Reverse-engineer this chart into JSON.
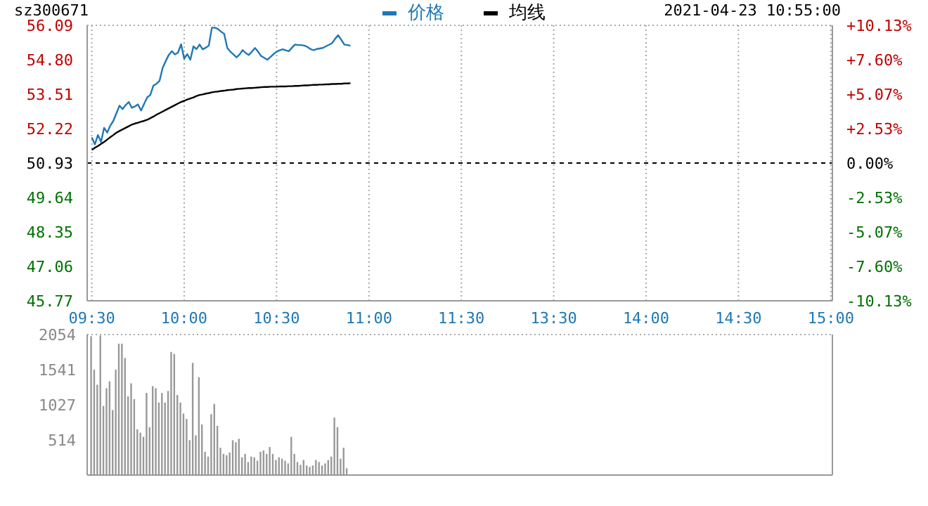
{
  "chart_data": [
    {
      "type": "line",
      "title": "sz300671",
      "subtitle": "2021-04-23 10:55:00",
      "categories": [
        "09:30",
        null,
        null,
        null,
        null,
        null,
        null,
        null,
        null,
        null,
        null,
        null,
        null,
        null,
        null,
        null,
        null,
        null,
        null,
        null,
        null,
        null,
        null,
        null,
        null,
        null,
        null,
        null,
        null,
        null,
        "10:00",
        null,
        null,
        null,
        null,
        null,
        null,
        null,
        null,
        null,
        null,
        null,
        null,
        null,
        null,
        null,
        null,
        null,
        null,
        null,
        null,
        null,
        null,
        null,
        null,
        null,
        null,
        null,
        null,
        null,
        "10:30",
        null,
        null,
        null,
        null,
        null,
        null,
        null,
        null,
        null,
        null,
        null,
        null,
        null,
        null,
        null,
        null,
        null,
        null,
        null,
        null,
        null,
        null,
        null,
        null,
        null,
        null,
        null,
        null,
        null,
        "11:00",
        null,
        null,
        null,
        null,
        null,
        null,
        null,
        null,
        null,
        null,
        null,
        null,
        null,
        null,
        null,
        null,
        null,
        null,
        null,
        null,
        null,
        null,
        null,
        null,
        null,
        null,
        null,
        null,
        null,
        "11:30",
        null,
        null,
        null,
        null,
        null,
        null,
        null,
        null,
        null,
        null,
        null,
        null,
        null,
        null,
        null,
        null,
        null,
        null,
        null,
        null,
        null,
        null,
        null,
        null,
        null,
        null,
        null,
        null,
        null,
        "13:30",
        null,
        null,
        null,
        null,
        null,
        null,
        null,
        null,
        null,
        null,
        null,
        null,
        null,
        null,
        null,
        null,
        null,
        null,
        null,
        null,
        null,
        null,
        null,
        null,
        null,
        null,
        null,
        null,
        null,
        "14:00",
        null,
        null,
        null,
        null,
        null,
        null,
        null,
        null,
        null,
        null,
        null,
        null,
        null,
        null,
        null,
        null,
        null,
        null,
        null,
        null,
        null,
        null,
        null,
        null,
        null,
        null,
        null,
        null,
        null,
        "14:30",
        null,
        null,
        null,
        null,
        null,
        null,
        null,
        null,
        null,
        null,
        null,
        null,
        null,
        null,
        null,
        null,
        null,
        null,
        null,
        null,
        null,
        null,
        null,
        null,
        null,
        null,
        null,
        null,
        null,
        "15:00"
      ],
      "ylim": [
        45.77,
        56.09
      ],
      "yticks": [
        45.77,
        47.06,
        48.35,
        49.64,
        50.93,
        52.22,
        53.51,
        {
          "value": 54.8,
          "label": "54.80"
        },
        56.09
      ],
      "y2lim": [
        -10.13,
        10.13
      ],
      "y2ticks": [
        {
          "value": -10.13,
          "label": "-10.13%"
        },
        {
          "value": -7.6,
          "label": "-7.60%"
        },
        {
          "value": -5.07,
          "label": "-5.07%"
        },
        {
          "value": -2.53,
          "label": "-2.53%"
        },
        {
          "value": 0,
          "label": "0.00%"
        },
        {
          "value": 2.53,
          "label": "+2.53%"
        },
        {
          "value": 5.07,
          "label": "+5.07%"
        },
        {
          "value": 7.6,
          "label": "+7.60%"
        },
        {
          "value": 10.13,
          "label": "+10.13%"
        }
      ],
      "grid": true,
      "legend": "top",
      "line_style": "solid",
      "marker": "none",
      "ref_lines": [
        {
          "axis": "y",
          "value": 50.93,
          "color": "#000000",
          "line_style": "dashed"
        }
      ],
      "series": [
        {
          "name": "价格",
          "color": "#1f78b4",
          "values": [
            51.89,
            51.63,
            51.98,
            51.72,
            52.25,
            52.07,
            52.33,
            52.51,
            52.8,
            53.08,
            52.95,
            53.1,
            53.22,
            53.0,
            53.05,
            53.13,
            52.9,
            53.15,
            53.39,
            53.48,
            53.83,
            53.9,
            54.01,
            54.49,
            54.75,
            54.98,
            55.12,
            55.0,
            55.07,
            55.38,
            54.84,
            55.01,
            54.8,
            55.3,
            55.2,
            55.37,
            55.19,
            55.25,
            55.33,
            56.0,
            56.0,
            55.95,
            55.85,
            55.77,
            55.24,
            55.1,
            55.0,
            54.89,
            55.0,
            55.16,
            55.05,
            54.98,
            55.1,
            55.24,
            55.1,
            54.94,
            54.87,
            54.8,
            54.9,
            55.01,
            55.1,
            55.15,
            55.19,
            55.15,
            55.12,
            55.25,
            55.37,
            55.35,
            55.35,
            55.33,
            55.28,
            55.2,
            55.16,
            55.2,
            55.22,
            55.24,
            55.3,
            55.36,
            55.42,
            55.58,
            55.72,
            55.55,
            55.37,
            55.35,
            55.33,
            null,
            null,
            null,
            null,
            null,
            null,
            null,
            null,
            null,
            null,
            null,
            null,
            null,
            null,
            null,
            null,
            null,
            null,
            null,
            null,
            null,
            null,
            null,
            null,
            null,
            null,
            null,
            null,
            null,
            null,
            null,
            null,
            null,
            null,
            null,
            null,
            null,
            null,
            null,
            null,
            null,
            null,
            null,
            null,
            null,
            null,
            null,
            null,
            null,
            null,
            null,
            null,
            null,
            null,
            null,
            null,
            null,
            null,
            null,
            null,
            null,
            null,
            null,
            null,
            null,
            null,
            null,
            null,
            null,
            null,
            null,
            null,
            null,
            null,
            null,
            null,
            null,
            null,
            null,
            null,
            null,
            null,
            null,
            null,
            null,
            null,
            null,
            null,
            null,
            null,
            null,
            null,
            null,
            null,
            null,
            null,
            null,
            null,
            null,
            null,
            null,
            null,
            null,
            null,
            null,
            null,
            null,
            null,
            null,
            null,
            null,
            null,
            null,
            null,
            null,
            null,
            null,
            null,
            null,
            null,
            null,
            null,
            null,
            null,
            null,
            null,
            null,
            null,
            null,
            null,
            null,
            null,
            null,
            null,
            null,
            null,
            null,
            null,
            null,
            null,
            null,
            null,
            null,
            null,
            null,
            null,
            null,
            null,
            null,
            null,
            null,
            null,
            null,
            null,
            null,
            null
          ]
        },
        {
          "name": "均线",
          "color": "#000000",
          "values": [
            51.42,
            51.5,
            51.57,
            51.65,
            51.72,
            51.81,
            51.9,
            51.98,
            52.07,
            52.13,
            52.19,
            52.25,
            52.31,
            52.37,
            52.41,
            52.44,
            52.48,
            52.51,
            52.55,
            52.61,
            52.67,
            52.74,
            52.8,
            52.86,
            52.92,
            52.98,
            53.04,
            53.1,
            53.16,
            53.22,
            53.26,
            53.31,
            53.35,
            53.39,
            53.44,
            53.48,
            53.5,
            53.53,
            53.55,
            53.58,
            53.6,
            53.61,
            53.63,
            53.64,
            53.66,
            53.67,
            53.68,
            53.7,
            53.71,
            53.72,
            53.73,
            53.74,
            53.74,
            53.75,
            53.76,
            53.77,
            53.78,
            53.78,
            53.79,
            53.79,
            53.79,
            53.8,
            53.8,
            53.8,
            53.81,
            53.81,
            53.82,
            53.82,
            53.83,
            53.84,
            53.84,
            53.85,
            53.86,
            53.86,
            53.87,
            53.87,
            53.88,
            53.88,
            53.89,
            53.89,
            53.9,
            53.9,
            53.91,
            53.91,
            53.92,
            null,
            null,
            null,
            null,
            null,
            null,
            null,
            null,
            null,
            null,
            null,
            null,
            null,
            null,
            null,
            null,
            null,
            null,
            null,
            null,
            null,
            null,
            null,
            null,
            null,
            null,
            null,
            null,
            null,
            null,
            null,
            null,
            null,
            null,
            null,
            null,
            null,
            null,
            null,
            null,
            null,
            null,
            null,
            null,
            null,
            null,
            null,
            null,
            null,
            null,
            null,
            null,
            null,
            null,
            null,
            null,
            null,
            null,
            null,
            null,
            null,
            null,
            null,
            null,
            null,
            null,
            null,
            null,
            null,
            null,
            null,
            null,
            null,
            null,
            null,
            null,
            null,
            null,
            null,
            null,
            null,
            null,
            null,
            null,
            null,
            null,
            null,
            null,
            null,
            null,
            null,
            null,
            null,
            null,
            null,
            null,
            null,
            null,
            null,
            null,
            null,
            null,
            null,
            null,
            null,
            null,
            null,
            null,
            null,
            null,
            null,
            null,
            null,
            null,
            null,
            null,
            null,
            null,
            null,
            null,
            null,
            null,
            null,
            null,
            null,
            null,
            null,
            null,
            null,
            null,
            null,
            null,
            null,
            null,
            null,
            null,
            null,
            null,
            null,
            null,
            null,
            null,
            null,
            null,
            null,
            null,
            null,
            null,
            null,
            null,
            null,
            null,
            null,
            null,
            null,
            null
          ]
        }
      ]
    },
    {
      "type": "bar",
      "tick_labels": "y",
      "ylim": [
        0,
        2054
      ],
      "yticks": [
        514,
        1027,
        1541,
        2054
      ],
      "grid": true,
      "color": "#999999",
      "categories": [
        null,
        null,
        null,
        null,
        null,
        null,
        null,
        null,
        null,
        null,
        null,
        null,
        null,
        null,
        null,
        null,
        null,
        null,
        null,
        null,
        null,
        null,
        null,
        null,
        null,
        null,
        null,
        null,
        null,
        null,
        null,
        null,
        null,
        null,
        null,
        null,
        null,
        null,
        null,
        null,
        null,
        null,
        null,
        null,
        null,
        null,
        null,
        null,
        null,
        null,
        null,
        null,
        null,
        null,
        null,
        null,
        null,
        null,
        null,
        null,
        null,
        null,
        null,
        null,
        null,
        null,
        null,
        null,
        null,
        null,
        null,
        null,
        null,
        null,
        null,
        null,
        null,
        null,
        null,
        null,
        null,
        null,
        null,
        null,
        null,
        null,
        null,
        null,
        null,
        null,
        null,
        null,
        null,
        null,
        null,
        null,
        null,
        null,
        null,
        null,
        null,
        null,
        null,
        null,
        null,
        null,
        null,
        null,
        null,
        null,
        null,
        null,
        null,
        null,
        null,
        null,
        null,
        null,
        null,
        null,
        null,
        null,
        null,
        null,
        null,
        null,
        null,
        null,
        null,
        null,
        null,
        null,
        null,
        null,
        null,
        null,
        null,
        null,
        null,
        null,
        null,
        null,
        null,
        null,
        null,
        null,
        null,
        null,
        null,
        null,
        null,
        null,
        null,
        null,
        null,
        null,
        null,
        null,
        null,
        null,
        null,
        null,
        null,
        null,
        null,
        null,
        null,
        null,
        null,
        null,
        null,
        null,
        null,
        null,
        null,
        null,
        null,
        null,
        null,
        null,
        null,
        null,
        null,
        null,
        null,
        null,
        null,
        null,
        null,
        null,
        null,
        null,
        null,
        null,
        null,
        null,
        null,
        null,
        null,
        null,
        null,
        null,
        null,
        null,
        null,
        null,
        null,
        null,
        null,
        null,
        null,
        null,
        null,
        null,
        null,
        null,
        null,
        null,
        null,
        null,
        null,
        null,
        null,
        null,
        null,
        null,
        null,
        null,
        null,
        null,
        null,
        null,
        null,
        null,
        null,
        null,
        null,
        null,
        null,
        null,
        null
      ],
      "values": [
        2030,
        1540,
        1320,
        2040,
        1010,
        1270,
        1370,
        950,
        1540,
        1920,
        1920,
        1710,
        1150,
        1340,
        1110,
        670,
        620,
        560,
        1200,
        700,
        1300,
        1270,
        1060,
        1200,
        1060,
        1230,
        1800,
        1770,
        1170,
        1060,
        900,
        820,
        510,
        1640,
        580,
        1430,
        740,
        340,
        270,
        890,
        1040,
        720,
        400,
        310,
        290,
        330,
        510,
        480,
        530,
        260,
        310,
        190,
        270,
        260,
        210,
        340,
        360,
        310,
        410,
        310,
        220,
        260,
        240,
        210,
        170,
        560,
        310,
        190,
        150,
        220,
        140,
        120,
        140,
        220,
        190,
        140,
        170,
        220,
        270,
        840,
        700,
        240,
        400,
        100,
        10,
        null,
        null,
        null,
        null,
        null,
        null,
        null,
        null,
        null,
        null,
        null,
        null,
        null,
        null,
        null,
        null,
        null,
        null,
        null,
        null,
        null,
        null,
        null,
        null,
        null,
        null,
        null,
        null,
        null,
        null,
        null,
        null,
        null,
        null,
        null,
        null,
        null,
        null,
        null,
        null,
        null,
        null,
        null,
        null,
        null,
        null,
        null,
        null,
        null,
        null,
        null,
        null,
        null,
        null,
        null,
        null,
        null,
        null,
        null,
        null,
        null,
        null,
        null,
        null,
        null,
        null,
        null,
        null,
        null,
        null,
        null,
        null,
        null,
        null,
        null,
        null,
        null,
        null,
        null,
        null,
        null,
        null,
        null,
        null,
        null,
        null,
        null,
        null,
        null,
        null,
        null,
        null,
        null,
        null,
        null,
        null,
        null,
        null,
        null,
        null,
        null,
        null,
        null,
        null,
        null,
        null,
        null,
        null,
        null,
        null,
        null,
        null,
        null,
        null,
        null,
        null,
        null,
        null,
        null,
        null,
        null,
        null,
        null,
        null,
        null,
        null,
        null,
        null,
        null,
        null,
        null,
        null,
        null,
        null,
        null,
        null,
        null,
        null,
        null,
        null,
        null,
        null,
        null,
        null,
        null,
        null,
        null,
        null,
        null,
        null,
        null,
        null,
        null,
        null,
        null,
        null
      ]
    }
  ]
}
